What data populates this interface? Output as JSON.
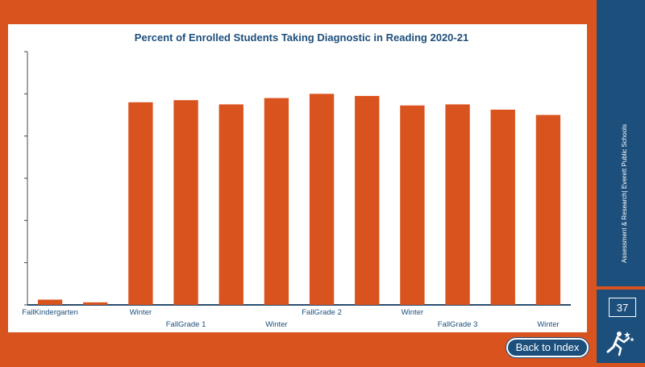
{
  "sidebar": {
    "text": "Assessment & Research| Everett Public Schools",
    "page_number": "37"
  },
  "back_button": "Back to Index",
  "colors": {
    "bar": "#d9531e",
    "title": "#1d4f7c",
    "sidebar": "#1d4f7c"
  },
  "chart_data": {
    "type": "bar",
    "title": "Percent of Enrolled Students Taking Diagnostic in Reading 2020-21",
    "xlabel": "",
    "ylabel": "",
    "grid": false,
    "ylim": [
      0,
      120
    ],
    "categories": [
      "FallKindergarten",
      "",
      "Winter",
      "FallGrade 1",
      "",
      "Winter",
      "FallGrade 2",
      "",
      "Winter",
      "FallGrade 3",
      "",
      "Winter"
    ],
    "values": [
      2.5,
      1.2,
      96,
      97,
      95,
      98,
      100,
      99,
      94.5,
      95,
      92.5,
      90
    ]
  }
}
